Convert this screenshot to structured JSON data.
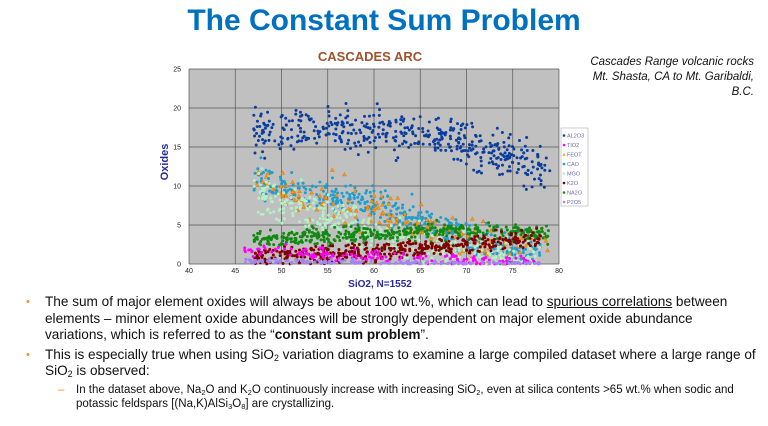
{
  "slide": {
    "title": "The Constant Sum Problem",
    "caption_lines": [
      "Cascades Range volcanic rocks",
      "Mt. Shasta, CA to Mt. Garibaldi,",
      "B.C."
    ],
    "bullets": [
      {
        "segments": [
          {
            "t": "The sum of major element oxides will always be about 100 wt.%, which can lead to "
          },
          {
            "t": "spurious correlations",
            "s": "u"
          },
          {
            "t": " between elements – minor element oxide abundances will be strongly dependent on major element oxide abundance variations, which is referred to as the “"
          },
          {
            "t": "constant sum problem",
            "s": "b"
          },
          {
            "t": "”."
          }
        ]
      },
      {
        "segments": [
          {
            "t": "This is especially true when using SiO"
          },
          {
            "t": "2",
            "s": "sub"
          },
          {
            "t": " variation diagrams to examine a large compiled dataset where a large range of SiO"
          },
          {
            "t": "2",
            "s": "sub"
          },
          {
            "t": " is observed:"
          }
        ],
        "sub": [
          {
            "segments": [
              {
                "t": "In the dataset above, Na"
              },
              {
                "t": "2",
                "s": "sub"
              },
              {
                "t": "O and K"
              },
              {
                "t": "2",
                "s": "sub"
              },
              {
                "t": "O continuously increase with increasing SiO"
              },
              {
                "t": "2",
                "s": "sub"
              },
              {
                "t": ", even at silica contents >65 wt.% when sodic and potassic feldspars [(Na,K)AlSi"
              },
              {
                "t": "3",
                "s": "sub"
              },
              {
                "t": "O"
              },
              {
                "t": "8",
                "s": "sub"
              },
              {
                "t": "] are crystallizing."
              }
            ]
          }
        ]
      }
    ]
  },
  "chart_data": {
    "type": "scatter",
    "title": "CASCADES ARC",
    "xlabel": "SiO2, N=1552",
    "ylabel": "Oxides",
    "xlim": [
      40,
      80
    ],
    "ylim": [
      0,
      25
    ],
    "xticks": [
      40,
      45,
      50,
      55,
      60,
      65,
      70,
      75,
      80
    ],
    "xtick_labels": [
      "40",
      "45",
      "50",
      "55",
      "60",
      "65",
      "70",
      "75",
      "80"
    ],
    "yticks": [
      0,
      5,
      10,
      15,
      20,
      25
    ],
    "ytick_labels": [
      "0",
      "5",
      "10",
      "15",
      "20",
      "25"
    ],
    "grid": true,
    "plot_background": "#c0c0c0",
    "legend_position": "right",
    "note": "",
    "series": [
      {
        "name": "AL2O3",
        "color": "#0a3d9e",
        "marker": "circle",
        "trend": [
          [
            47,
            17
          ],
          [
            55,
            17.5
          ],
          [
            65,
            16.5
          ],
          [
            70,
            15.5
          ],
          [
            75,
            13.5
          ],
          [
            79,
            11.5
          ]
        ],
        "spread": 1.3,
        "count": 450
      },
      {
        "name": "TIO2",
        "color": "#ff00ff",
        "marker": "circle",
        "trend": [
          [
            46,
            2
          ],
          [
            55,
            1.1
          ],
          [
            65,
            0.7
          ],
          [
            70,
            0.4
          ],
          [
            78,
            0.2
          ]
        ],
        "spread": 0.4,
        "count": 160
      },
      {
        "name": "FEOT",
        "color": "#ff9900",
        "marker": "triangle",
        "trend": [
          [
            47,
            11
          ],
          [
            52,
            8.5
          ],
          [
            58,
            7
          ],
          [
            62,
            6
          ],
          [
            68,
            4
          ],
          [
            75,
            2
          ],
          [
            79,
            1.2
          ]
        ],
        "spread": 1.4,
        "count": 160
      },
      {
        "name": "CAO",
        "color": "#1e9fd0",
        "marker": "circle",
        "trend": [
          [
            47,
            11
          ],
          [
            52,
            9.5
          ],
          [
            58,
            8
          ],
          [
            62,
            7
          ],
          [
            66,
            5
          ],
          [
            70,
            3
          ],
          [
            75,
            2
          ],
          [
            78,
            1
          ]
        ],
        "spread": 1.1,
        "count": 420
      },
      {
        "name": "MGO",
        "color": "#b4f0c4",
        "marker": "circle",
        "trend": [
          [
            47,
            9
          ],
          [
            52,
            7
          ],
          [
            57,
            5.5
          ],
          [
            62,
            3
          ],
          [
            68,
            1.5
          ],
          [
            75,
            0.8
          ],
          [
            78,
            0.5
          ]
        ],
        "spread": 1.4,
        "count": 420
      },
      {
        "name": "K2O",
        "color": "#800000",
        "marker": "circle",
        "trend": [
          [
            47,
            1
          ],
          [
            55,
            1.3
          ],
          [
            62,
            1.7
          ],
          [
            68,
            2.3
          ],
          [
            72,
            2.8
          ],
          [
            78,
            3.5
          ]
        ],
        "spread": 0.6,
        "count": 420
      },
      {
        "name": "NA2O",
        "color": "#128a12",
        "marker": "circle",
        "trend": [
          [
            47,
            3
          ],
          [
            55,
            3.6
          ],
          [
            62,
            4
          ],
          [
            68,
            4.3
          ],
          [
            74,
            4.2
          ],
          [
            79,
            3.8
          ]
        ],
        "spread": 0.5,
        "count": 420
      },
      {
        "name": "P2O5",
        "color": "#a484f4",
        "marker": "circle",
        "trend": [
          [
            46,
            0.4
          ],
          [
            60,
            0.2
          ],
          [
            78,
            0.05
          ]
        ],
        "spread": 0.15,
        "count": 160
      }
    ],
    "legend_labels": [
      "AL2O3",
      "TIO2",
      "FEOT",
      "CAO",
      "MGO",
      "K2O",
      "NA2O",
      "P2O5"
    ]
  }
}
